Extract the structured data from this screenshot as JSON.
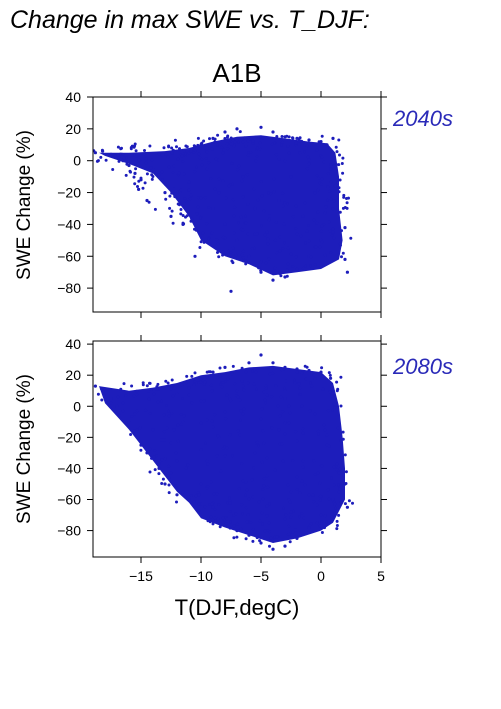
{
  "title": "Change in max SWE vs. T_DJF:",
  "subtitle": "A1B",
  "colors": {
    "points": "#1d1dbb",
    "label": "#2a2ab8",
    "axis": "#000000"
  },
  "chart_data": [
    {
      "type": "scatter",
      "panel_label": "2040s",
      "ylabel": "SWE Change (%)",
      "xlabel": "",
      "xlim": [
        -19,
        5
      ],
      "ylim": [
        -95,
        40
      ],
      "xticks": [
        -15,
        -10,
        -5,
        0,
        5
      ],
      "yticks": [
        40,
        20,
        0,
        -20,
        -40,
        -60,
        -80
      ],
      "ytick_labels": [
        "40",
        "20",
        "0",
        "−20",
        "−40",
        "−60",
        "−80"
      ],
      "xtick_labels": [],
      "grid": false,
      "series": [
        {
          "points": [
            [
              -18.8,
              5
            ],
            [
              -18.2,
              6
            ],
            [
              -17.5,
              4
            ],
            [
              -17,
              2
            ],
            [
              -16.5,
              0
            ],
            [
              -16,
              -3
            ],
            [
              -15.5,
              -8
            ],
            [
              -15,
              -12
            ],
            [
              -15.2,
              -18
            ],
            [
              -14.5,
              -25
            ],
            [
              -14,
              -5
            ],
            [
              -13,
              -20
            ],
            [
              -12.5,
              -35
            ],
            [
              -11.5,
              -40
            ],
            [
              -10.5,
              -60
            ],
            [
              -11,
              5
            ],
            [
              -10,
              10
            ],
            [
              -9,
              14
            ],
            [
              -8,
              18
            ],
            [
              -7,
              20
            ],
            [
              -5,
              21
            ],
            [
              -4,
              18
            ],
            [
              -3,
              15
            ],
            [
              -2,
              14
            ],
            [
              -1,
              13
            ],
            [
              0,
              12
            ],
            [
              0.5,
              10
            ],
            [
              1,
              14
            ],
            [
              -9,
              -30
            ],
            [
              -8,
              -40
            ],
            [
              -7,
              -50
            ],
            [
              -6,
              -60
            ],
            [
              -5,
              -70
            ],
            [
              -4,
              -75
            ],
            [
              -3,
              -73
            ],
            [
              -2,
              -68
            ],
            [
              -1,
              -60
            ],
            [
              0,
              -50
            ],
            [
              1,
              -45
            ],
            [
              2,
              -42
            ],
            [
              2,
              -62
            ],
            [
              2.2,
              -70
            ],
            [
              -7.5,
              -82
            ],
            [
              -8.5,
              -20
            ],
            [
              -6.5,
              -10
            ],
            [
              -5.5,
              -30
            ],
            [
              -4.5,
              -45
            ],
            [
              -3.5,
              -25
            ],
            [
              -2.5,
              -10
            ],
            [
              -1.5,
              -35
            ],
            [
              -0.5,
              -20
            ],
            [
              0.8,
              -5
            ],
            [
              -6,
              5
            ],
            [
              -3,
              0
            ],
            [
              -9.5,
              -5
            ]
          ]
        }
      ]
    },
    {
      "type": "scatter",
      "panel_label": "2080s",
      "ylabel": "SWE Change (%)",
      "xlabel": "T(DJF,degC)",
      "xlim": [
        -19,
        5
      ],
      "ylim": [
        -97,
        42
      ],
      "xticks": [
        -15,
        -10,
        -5,
        0,
        5
      ],
      "xtick_labels": [
        "−15",
        "−10",
        "−5",
        "0",
        "5"
      ],
      "yticks": [
        40,
        20,
        0,
        -20,
        -40,
        -60,
        -80
      ],
      "ytick_labels": [
        "40",
        "20",
        "0",
        "−20",
        "−40",
        "−60",
        "−80"
      ],
      "grid": false,
      "series": [
        {
          "points": [
            [
              -18.8,
              13
            ],
            [
              -18.2,
              10
            ],
            [
              -17.5,
              5
            ],
            [
              -17,
              0
            ],
            [
              -16.5,
              -3
            ],
            [
              -16,
              -10
            ],
            [
              -15.5,
              -18
            ],
            [
              -15,
              -25
            ],
            [
              -14.5,
              -30
            ],
            [
              -14,
              -15
            ],
            [
              -13.5,
              -40
            ],
            [
              -13,
              -50
            ],
            [
              -12,
              -57
            ],
            [
              -11,
              -60
            ],
            [
              -12,
              8
            ],
            [
              -11,
              12
            ],
            [
              -10,
              17
            ],
            [
              -9,
              22
            ],
            [
              -8,
              25
            ],
            [
              -6,
              28
            ],
            [
              -5,
              33
            ],
            [
              -4,
              28
            ],
            [
              -3,
              25
            ],
            [
              -2,
              24
            ],
            [
              -1,
              23
            ],
            [
              0,
              22
            ],
            [
              0.8,
              18
            ],
            [
              -10,
              -50
            ],
            [
              -9,
              -65
            ],
            [
              -8,
              -72
            ],
            [
              -7,
              -80
            ],
            [
              -6,
              -83
            ],
            [
              -5,
              -88
            ],
            [
              -4,
              -92
            ],
            [
              -3,
              -90
            ],
            [
              -2,
              -85
            ],
            [
              -1,
              -78
            ],
            [
              0,
              -70
            ],
            [
              1,
              -60
            ],
            [
              1.5,
              -55
            ],
            [
              2,
              -50
            ],
            [
              2.2,
              -65
            ],
            [
              -8.5,
              -20
            ],
            [
              -6.5,
              -5
            ],
            [
              -5.5,
              -30
            ],
            [
              -4.5,
              -45
            ],
            [
              -3.5,
              -15
            ],
            [
              -2.5,
              -55
            ],
            [
              -1.5,
              -35
            ],
            [
              -0.5,
              -5
            ],
            [
              0.5,
              -25
            ],
            [
              -7,
              10
            ],
            [
              -3,
              5
            ],
            [
              -9.5,
              -35
            ],
            [
              -11.5,
              -10
            ]
          ]
        }
      ]
    }
  ]
}
